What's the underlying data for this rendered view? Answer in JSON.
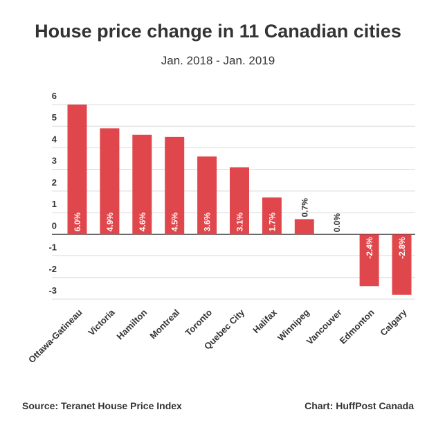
{
  "title": "House price change in 11 Canadian cities",
  "subtitle": "Jan. 2018 - Jan. 2019",
  "footer": {
    "source": "Source: Teranet House Price Index",
    "credit": "Chart: HuffPost Canada"
  },
  "colors": {
    "bar": "#e0474c",
    "grid": "#d9d9d9",
    "axis": "#333333",
    "text": "#333333"
  },
  "chart_data": {
    "type": "bar",
    "title": "House price change in 11 Canadian cities",
    "subtitle": "Jan. 2018 - Jan. 2019",
    "categories": [
      "Ottawa-Gatineau",
      "Victoria",
      "Hamilton",
      "Montreal",
      "Toronto",
      "Quebec City",
      "Halifax",
      "Winnipeg",
      "Vancouver",
      "Edmonton",
      "Calgary"
    ],
    "values": [
      6.0,
      4.9,
      4.6,
      4.5,
      3.6,
      3.1,
      1.7,
      0.7,
      0.0,
      -2.4,
      -2.8
    ],
    "data_labels": [
      "6.0%",
      "4.9%",
      "4.6%",
      "4.5%",
      "3.6%",
      "3.1%",
      "1.7%",
      "0.7%",
      "0.0%",
      "-2.4%",
      "-2.8%"
    ],
    "yticks": [
      "6",
      "5",
      "4",
      "3",
      "2",
      "1",
      "0",
      "-1",
      "-2",
      "-3"
    ],
    "ylim": [
      -3,
      6
    ],
    "grid": true
  }
}
